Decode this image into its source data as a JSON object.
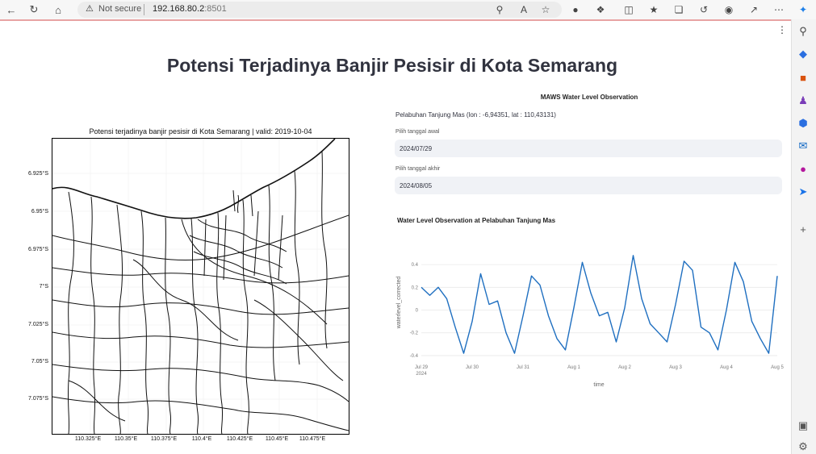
{
  "browser": {
    "not_secure": "Not secure",
    "url_host": "192.168.80.2",
    "url_port": ":8501"
  },
  "page": {
    "title": "Potensi Terjadinya Banjir Pesisir di Kota Semarang"
  },
  "map": {
    "title": "Potensi terjadinya banjir pesisir di Kota Semarang | valid: 2019-10-04",
    "y_ticks": [
      "6.925°S",
      "6.95°S",
      "6.975°S",
      "7°S",
      "7.025°S",
      "7.05°S",
      "7.075°S"
    ],
    "x_ticks": [
      "110.325°E",
      "110.35°E",
      "110.375°E",
      "110.4°E",
      "110.425°E",
      "110.45°E",
      "110.475°E"
    ]
  },
  "panel": {
    "title": "MAWS Water Level Observation",
    "location": "Pelabuhan Tanjung Mas (lon : -6,94351, lat : 110,43131)",
    "start_label": "Pilih tanggal awal",
    "start_value": "2024/07/29",
    "end_label": "Pilih tanggal akhir",
    "end_value": "2024/08/05"
  },
  "chart_data": {
    "type": "line",
    "title": "Water Level Observation at Pelabuhan Tanjung Mas",
    "xlabel": "time",
    "ylabel": "waterlevel_corrected",
    "x_tick_labels": [
      "Jul 29",
      "Jul 30",
      "Jul 31",
      "Aug 1",
      "Aug 2",
      "Aug 3",
      "Aug 4",
      "Aug 5"
    ],
    "x_tick_sublabel": "2024",
    "y_ticks": [
      0.4,
      0.2,
      0,
      -0.2,
      -0.4
    ],
    "ylim": [
      -0.45,
      0.5
    ],
    "color": "#1f6fc0",
    "series": [
      {
        "x": [
          "Jul 29 00:00",
          "Jul 29 04:00",
          "Jul 29 08:00",
          "Jul 29 12:00",
          "Jul 29 16:00",
          "Jul 29 20:00",
          "Jul 30 00:00",
          "Jul 30 04:00",
          "Jul 30 08:00",
          "Jul 30 12:00",
          "Jul 30 16:00",
          "Jul 30 20:00",
          "Jul 31 00:00",
          "Jul 31 04:00",
          "Jul 31 08:00",
          "Jul 31 12:00",
          "Jul 31 16:00",
          "Jul 31 20:00",
          "Aug 1 00:00",
          "Aug 1 04:00",
          "Aug 1 08:00",
          "Aug 1 12:00",
          "Aug 1 16:00",
          "Aug 1 20:00",
          "Aug 2 00:00",
          "Aug 2 04:00",
          "Aug 2 08:00",
          "Aug 2 12:00",
          "Aug 2 16:00",
          "Aug 2 20:00",
          "Aug 3 00:00",
          "Aug 3 04:00",
          "Aug 3 08:00",
          "Aug 3 12:00",
          "Aug 3 16:00",
          "Aug 3 20:00",
          "Aug 4 00:00",
          "Aug 4 04:00",
          "Aug 4 08:00",
          "Aug 4 12:00",
          "Aug 4 16:00",
          "Aug 4 20:00",
          "Aug 5 00:00"
        ],
        "values": [
          0.2,
          0.13,
          0.2,
          0.1,
          -0.15,
          -0.38,
          -0.1,
          0.32,
          0.05,
          0.08,
          -0.2,
          -0.38,
          -0.05,
          0.3,
          0.22,
          -0.05,
          -0.25,
          -0.35,
          0.02,
          0.42,
          0.15,
          -0.05,
          -0.02,
          -0.28,
          0.02,
          0.48,
          0.1,
          -0.12,
          -0.2,
          -0.28,
          0.05,
          0.43,
          0.35,
          -0.15,
          -0.2,
          -0.35,
          0.0,
          0.42,
          0.25,
          -0.1,
          -0.25,
          -0.38,
          0.3
        ]
      }
    ]
  }
}
